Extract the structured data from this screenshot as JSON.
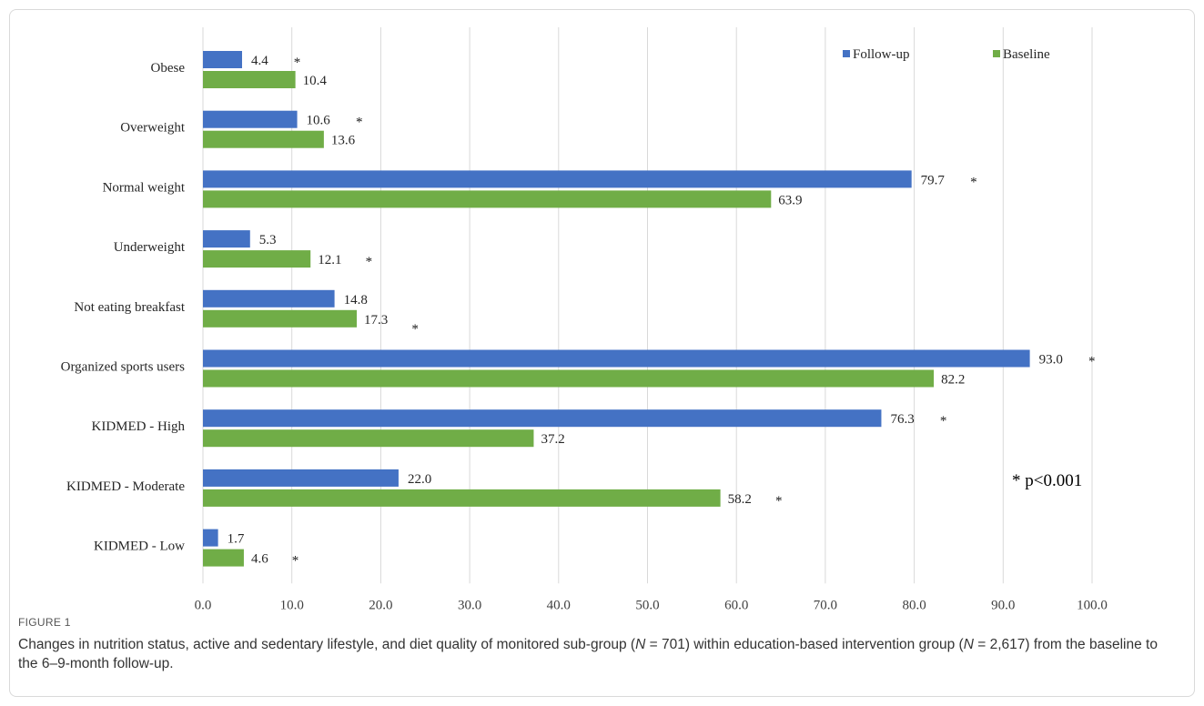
{
  "figure": {
    "label": "FIGURE 1",
    "caption_parts": [
      "Changes in nutrition status, active and sedentary lifestyle, and diet quality of monitored sub-group (",
      "N",
      " = 701) within education-based intervention group (",
      "N",
      " = 2,617) from the baseline to the 6–9-month follow-up."
    ]
  },
  "chart_data": {
    "type": "bar",
    "orientation": "horizontal",
    "categories": [
      "Obese",
      "Overweight",
      "Normal weight",
      "Underweight",
      "Not eating breakfast",
      "Organized sports users",
      "KIDMED - High",
      "KIDMED - Moderate",
      "KIDMED - Low"
    ],
    "series": [
      {
        "name": "Follow-up",
        "color": "#4472c4",
        "values": [
          4.4,
          10.6,
          79.7,
          5.3,
          14.8,
          93.0,
          76.3,
          22.0,
          1.7
        ],
        "labels": [
          "4.4",
          "10.6",
          "79.7",
          "5.3",
          "14.8",
          "93.0",
          "76.3",
          "22.0",
          "1.7"
        ]
      },
      {
        "name": "Baseline",
        "color": "#70ad47",
        "values": [
          10.4,
          13.6,
          63.9,
          12.1,
          17.3,
          82.2,
          37.2,
          58.2,
          4.6
        ],
        "labels": [
          "10.4",
          "13.6",
          "63.9",
          "12.1",
          "17.3",
          "82.2",
          "37.2",
          "58.2",
          "4.6"
        ]
      }
    ],
    "significance": {
      "marker": "*",
      "placement": [
        "follow-up",
        "follow-up",
        "follow-up",
        "baseline",
        "baseline-below",
        "follow-up",
        "follow-up",
        "baseline",
        "baseline"
      ]
    },
    "note": "* p<0.001",
    "xlim": [
      0,
      100
    ],
    "xticks": [
      "0.0",
      "10.0",
      "20.0",
      "30.0",
      "40.0",
      "50.0",
      "60.0",
      "70.0",
      "80.0",
      "90.0",
      "100.0"
    ],
    "xunit": "%",
    "grid": true,
    "legend_position": "top-right"
  }
}
